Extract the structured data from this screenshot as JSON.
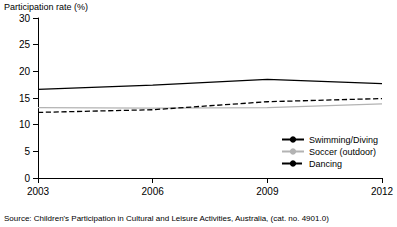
{
  "chart_data": {
    "type": "line",
    "y_label": "Participation rate (%)",
    "source": "Source: Children's Participation in Cultural and Leisure Activities, Australia, (cat. no. 4901.0)",
    "x": [
      2003,
      2006,
      2009,
      2012
    ],
    "xlim": [
      2003,
      2012
    ],
    "xticks": [
      2003,
      2006,
      2009,
      2012
    ],
    "ylim": [
      0,
      30
    ],
    "yticks": [
      0,
      5,
      10,
      15,
      20,
      25,
      30
    ],
    "grid": false,
    "legend": "lower right",
    "series": [
      {
        "name": "Swimming/Diving",
        "color": "#000000",
        "line_style": "solid",
        "values": [
          16.6,
          17.4,
          18.5,
          17.7
        ]
      },
      {
        "name": "Soccer (outdoor)",
        "color": "#b3b3b3",
        "line_style": "solid",
        "values": [
          13.2,
          13.1,
          13.2,
          13.9
        ]
      },
      {
        "name": "Dancing",
        "color": "#000000",
        "line_style": "dashed",
        "values": [
          12.3,
          12.8,
          14.3,
          14.9
        ]
      }
    ]
  }
}
